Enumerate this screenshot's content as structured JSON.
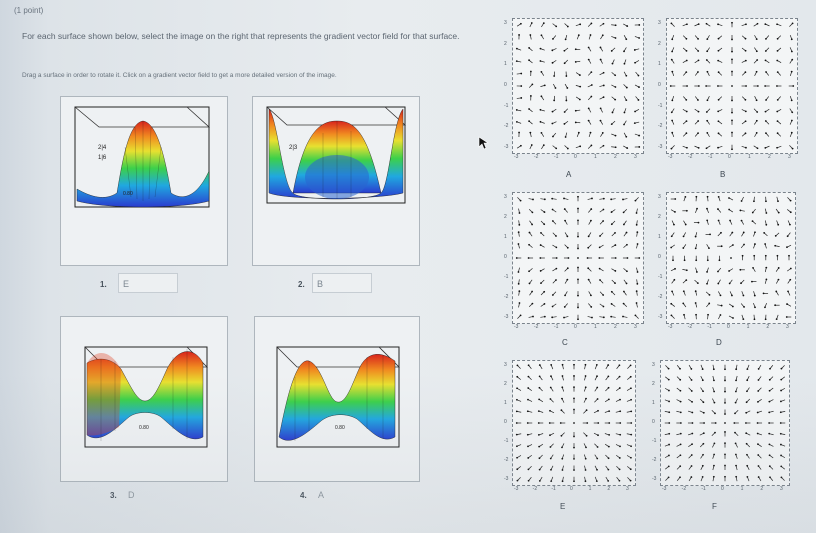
{
  "header": {
    "points": "(1 point)",
    "instruction": "For each surface shown below, select the image on the right that represents the gradient vector field for that surface.",
    "drag_hint": "Drag a surface in order to rotate it. Click on a gradient vector field to get a more detailed version of the image."
  },
  "surfaces": [
    {
      "number": "1.",
      "answer": "E",
      "axis_text": "0.80"
    },
    {
      "number": "2.",
      "answer": "B",
      "axis_text": "2|3"
    },
    {
      "number": "3.",
      "answer": "D",
      "axis_text": "0.80"
    },
    {
      "number": "4.",
      "answer": "A",
      "axis_text": "0.80"
    }
  ],
  "vector_fields": [
    {
      "label": "A",
      "pattern": "swirl"
    },
    {
      "label": "B",
      "pattern": "radial-grid"
    },
    {
      "label": "C",
      "pattern": "quadrant-cross"
    },
    {
      "label": "D",
      "pattern": "saddle-swirl"
    },
    {
      "label": "E",
      "pattern": "radial-out"
    },
    {
      "label": "F",
      "pattern": "radial-in"
    }
  ],
  "axis": {
    "y_ticks": [
      "3",
      "2",
      "1",
      "0",
      "-1",
      "-2",
      "-3"
    ],
    "x_ticks": [
      "-3",
      "-2",
      "-1",
      "0",
      "1",
      "2",
      "3"
    ]
  },
  "colors": {
    "accent_text": "#58626d"
  },
  "icons": {
    "cursor": "cursor-arrow-icon"
  }
}
